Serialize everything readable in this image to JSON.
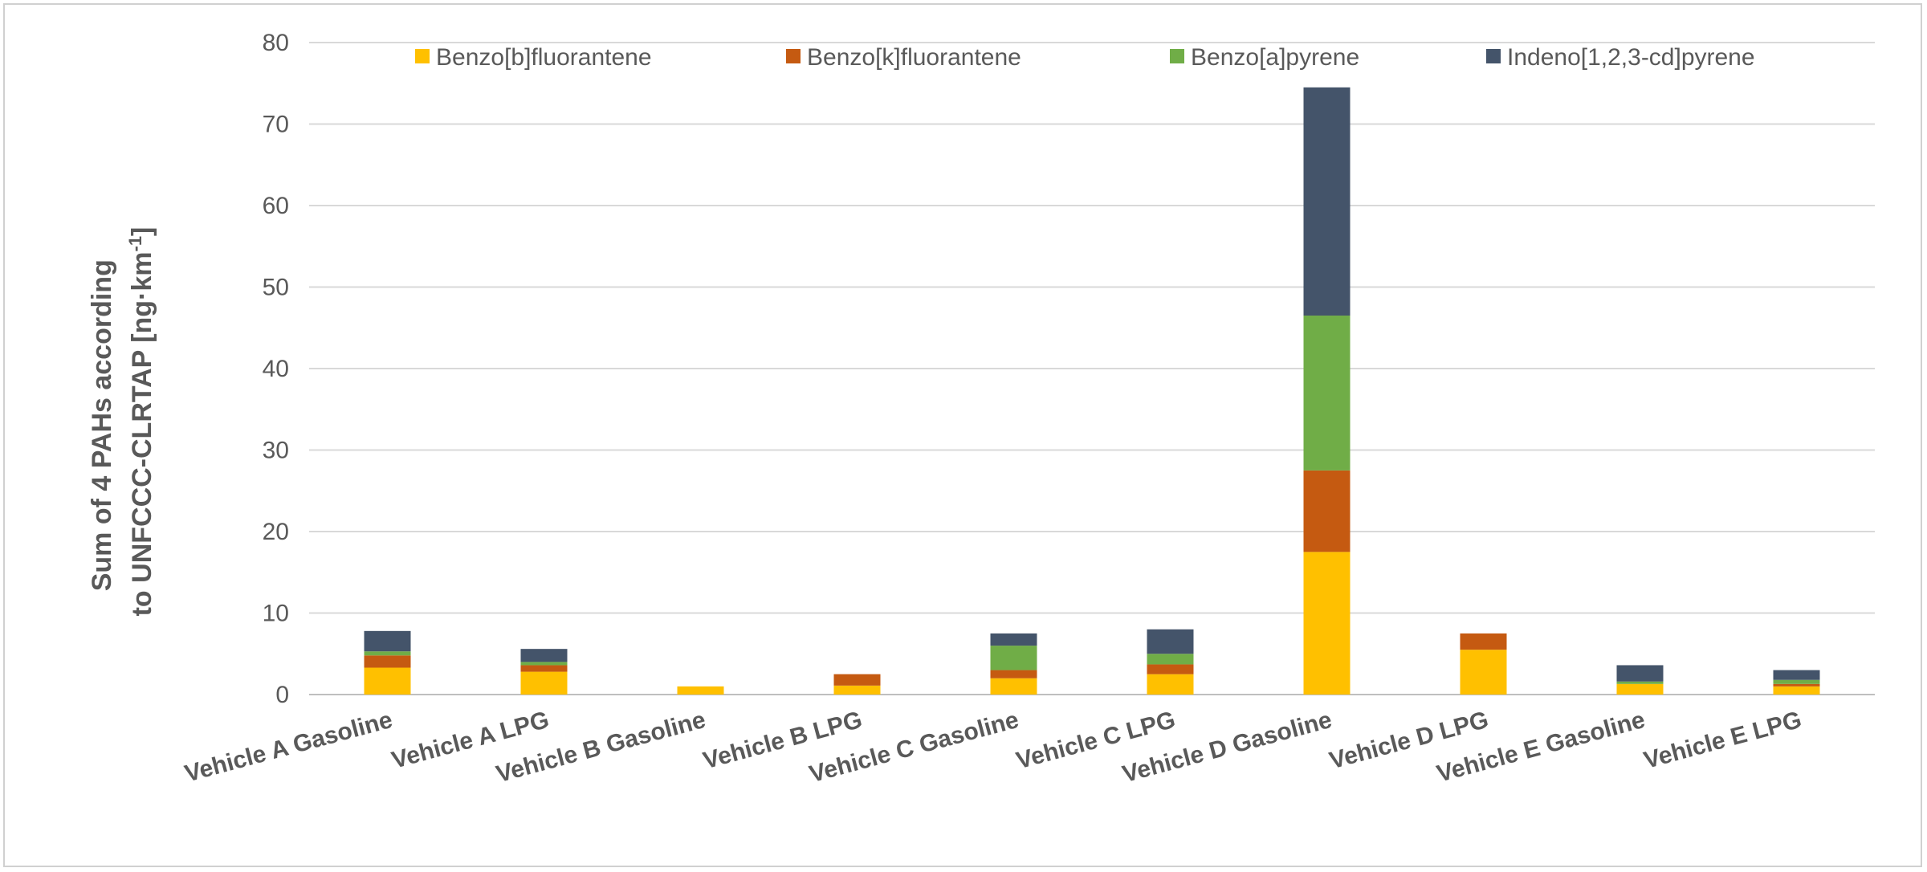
{
  "chart_data": {
    "type": "bar",
    "stacked": true,
    "title": "",
    "ylabel_lines": [
      "Sum of 4 PAHs according",
      "to UNFCCC-CLRTAP [ng·km"
    ],
    "ylabel_superscript": "-1",
    "ylabel_close": "]",
    "xlabel": "",
    "ylim": [
      0,
      80
    ],
    "yticks": [
      0,
      10,
      20,
      30,
      40,
      50,
      60,
      70,
      80
    ],
    "grid": true,
    "legend_position": "top",
    "categories": [
      "Vehicle A Gasoline",
      "Vehicle A LPG",
      "Vehicle B Gasoline",
      "Vehicle B LPG",
      "Vehicle C Gasoline",
      "Vehicle C LPG",
      "Vehicle D Gasoline",
      "Vehicle D LPG",
      "Vehicle E Gasoline",
      "Vehicle E LPG"
    ],
    "series": [
      {
        "name": "Benzo[b]fluorantene",
        "color": "#FFC000",
        "values": [
          3.3,
          2.8,
          1.0,
          1.1,
          2.0,
          2.5,
          17.5,
          5.5,
          1.3,
          1.0
        ]
      },
      {
        "name": "Benzo[k]fluorantene",
        "color": "#C55A11",
        "values": [
          1.5,
          0.8,
          0.0,
          1.4,
          1.0,
          1.2,
          10.0,
          2.0,
          0.0,
          0.3
        ]
      },
      {
        "name": "Benzo[a]pyrene",
        "color": "#70AD47",
        "values": [
          0.5,
          0.4,
          0.0,
          0.0,
          3.0,
          1.3,
          19.0,
          0.0,
          0.3,
          0.5
        ]
      },
      {
        "name": "Indeno[1,2,3-cd]pyrene",
        "color": "#44546A",
        "values": [
          2.5,
          1.6,
          0.0,
          0.0,
          1.5,
          3.0,
          28.0,
          0.0,
          2.0,
          1.2
        ]
      }
    ]
  }
}
